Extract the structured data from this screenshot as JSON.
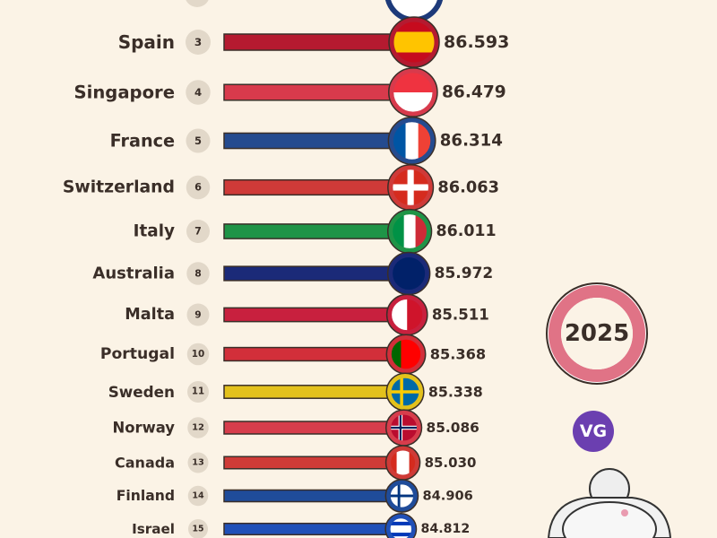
{
  "chart_data": {
    "type": "bar",
    "categories": [
      "Spain",
      "Singapore",
      "France",
      "Switzerland",
      "Italy",
      "Australia",
      "Malta",
      "Portugal",
      "Sweden",
      "Norway",
      "Canada",
      "Finland",
      "Israel"
    ],
    "ranks": [
      3,
      4,
      5,
      6,
      7,
      8,
      9,
      10,
      11,
      12,
      13,
      14,
      15
    ],
    "values": [
      86.593,
      86.479,
      86.314,
      86.063,
      86.011,
      85.972,
      85.511,
      85.368,
      85.338,
      85.086,
      85.03,
      84.906,
      84.812
    ],
    "value_labels": [
      "86.593",
      "86.479",
      "86.314",
      "86.063",
      "86.011",
      "85.972",
      "85.511",
      "85.368",
      "85.338",
      "85.086",
      "85.030",
      "84.906",
      "84.812"
    ],
    "colors": [
      "#b51a30",
      "#d83a4c",
      "#254b8f",
      "#cf3a38",
      "#1f9447",
      "#1b2a78",
      "#c8203e",
      "#d22f3a",
      "#e3c11c",
      "#d73d4c",
      "#cf3b37",
      "#1f4c9a",
      "#2050b8"
    ],
    "year": "2025",
    "logo": "VG"
  }
}
